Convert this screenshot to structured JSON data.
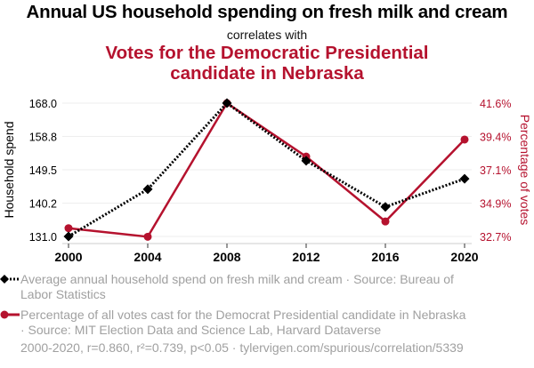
{
  "header": {
    "title": "Annual US household spending on fresh milk and cream",
    "connector": "correlates with",
    "title2_line1": "Votes for the Democratic Presidential",
    "title2_line2": "candidate in Nebraska"
  },
  "colors": {
    "series1": "#000000",
    "series2": "#b5122e",
    "grid": "#eeeeee",
    "legend_text": "#a0a0a0"
  },
  "chart_data": {
    "type": "line",
    "title": "Annual US household spending on fresh milk and cream correlates with Votes for the Democratic Presidential candidate in Nebraska",
    "x": [
      2000,
      2004,
      2008,
      2012,
      2016,
      2020
    ],
    "x_tick_labels": [
      "2000",
      "2004",
      "2008",
      "2012",
      "2016",
      "2020"
    ],
    "xlim": [
      2000,
      2020
    ],
    "series": [
      {
        "name": "Household spend",
        "axis": "left",
        "style": "dotted",
        "marker": "diamond",
        "color": "#000000",
        "values": [
          131.0,
          144.1,
          168.0,
          152.0,
          139.2,
          147.0
        ]
      },
      {
        "name": "Percentage of votes",
        "axis": "right",
        "style": "solid",
        "marker": "circle",
        "color": "#b5122e",
        "values": [
          33.25,
          32.68,
          41.6,
          38.03,
          33.7,
          39.17
        ]
      }
    ],
    "y_left": {
      "label": "Household spend",
      "range": [
        131.0,
        168.0
      ],
      "ticks": [
        "131.0",
        "140.2",
        "149.5",
        "158.8",
        "168.0"
      ]
    },
    "y_right": {
      "label": "Percentage of votes",
      "range": [
        32.7,
        41.6
      ],
      "ticks": [
        "32.7%",
        "34.9%",
        "37.1%",
        "39.4%",
        "41.6%"
      ]
    },
    "grid": true,
    "legend_position": "bottom"
  },
  "legend": {
    "items": [
      {
        "line1": "Average annual household spend on fresh milk and cream · Source: Bureau of",
        "line2": "Labor Statistics"
      },
      {
        "line1": "Percentage of all votes cast for the Democrat Presidential candidate in Nebraska",
        "line2": "· Source: MIT Election Data and Science Lab, Harvard Dataverse"
      }
    ]
  },
  "footer": {
    "text": "2000-2020, r=0.860, r²=0.739, p<0.05 · tylervigen.com/spurious/correlation/5339"
  }
}
